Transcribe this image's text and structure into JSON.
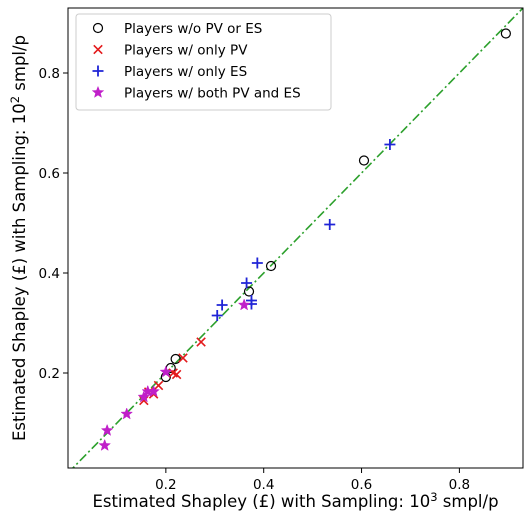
{
  "chart_data": {
    "type": "scatter",
    "xlabel": "Estimated Shapley (£) with Sampling: 10",
    "xlabel_exp": "3",
    "xlabel_unit": " smpl/p",
    "ylabel": "Estimated Shapley (£) with Sampling: 10",
    "ylabel_exp": "2",
    "ylabel_unit": " smpl/p",
    "xlim": [
      0.0,
      0.93
    ],
    "ylim": [
      0.01,
      0.93
    ],
    "xticks": [
      0.2,
      0.4,
      0.6,
      0.8
    ],
    "xtick_labels": [
      "0.2",
      "0.4",
      "0.6",
      "0.8"
    ],
    "yticks": [
      0.2,
      0.4,
      0.6,
      0.8
    ],
    "ytick_labels": [
      "0.2",
      "0.4",
      "0.6",
      "0.8"
    ],
    "grid": false,
    "legend_position": "top-left",
    "reference_line": {
      "style": "dash-dot",
      "color": "#2ca02c",
      "from": [
        0.0,
        0.0
      ],
      "to": [
        0.93,
        0.93
      ]
    },
    "series": [
      {
        "name": "Players w/o PV or ES",
        "marker": "open-circle",
        "color": "#000000",
        "points": [
          [
            0.2,
            0.192
          ],
          [
            0.21,
            0.21
          ],
          [
            0.22,
            0.228
          ],
          [
            0.37,
            0.363
          ],
          [
            0.415,
            0.414
          ],
          [
            0.605,
            0.625
          ],
          [
            0.895,
            0.879
          ]
        ]
      },
      {
        "name": "Players w/ only PV",
        "marker": "x",
        "color": "#e31a1c",
        "points": [
          [
            0.155,
            0.145
          ],
          [
            0.165,
            0.162
          ],
          [
            0.175,
            0.158
          ],
          [
            0.185,
            0.175
          ],
          [
            0.215,
            0.2
          ],
          [
            0.222,
            0.197
          ],
          [
            0.235,
            0.23
          ],
          [
            0.272,
            0.262
          ]
        ]
      },
      {
        "name": "Players w/ only ES",
        "marker": "plus",
        "color": "#1f24d6",
        "points": [
          [
            0.305,
            0.315
          ],
          [
            0.315,
            0.336
          ],
          [
            0.365,
            0.38
          ],
          [
            0.375,
            0.345
          ],
          [
            0.375,
            0.338
          ],
          [
            0.387,
            0.42
          ],
          [
            0.535,
            0.497
          ],
          [
            0.658,
            0.657
          ]
        ]
      },
      {
        "name": "Players w/ both PV and ES",
        "marker": "star",
        "color": "#c01fc9",
        "points": [
          [
            0.075,
            0.055
          ],
          [
            0.08,
            0.085
          ],
          [
            0.12,
            0.118
          ],
          [
            0.155,
            0.152
          ],
          [
            0.163,
            0.163
          ],
          [
            0.175,
            0.163
          ],
          [
            0.2,
            0.202
          ],
          [
            0.36,
            0.336
          ]
        ]
      }
    ]
  }
}
